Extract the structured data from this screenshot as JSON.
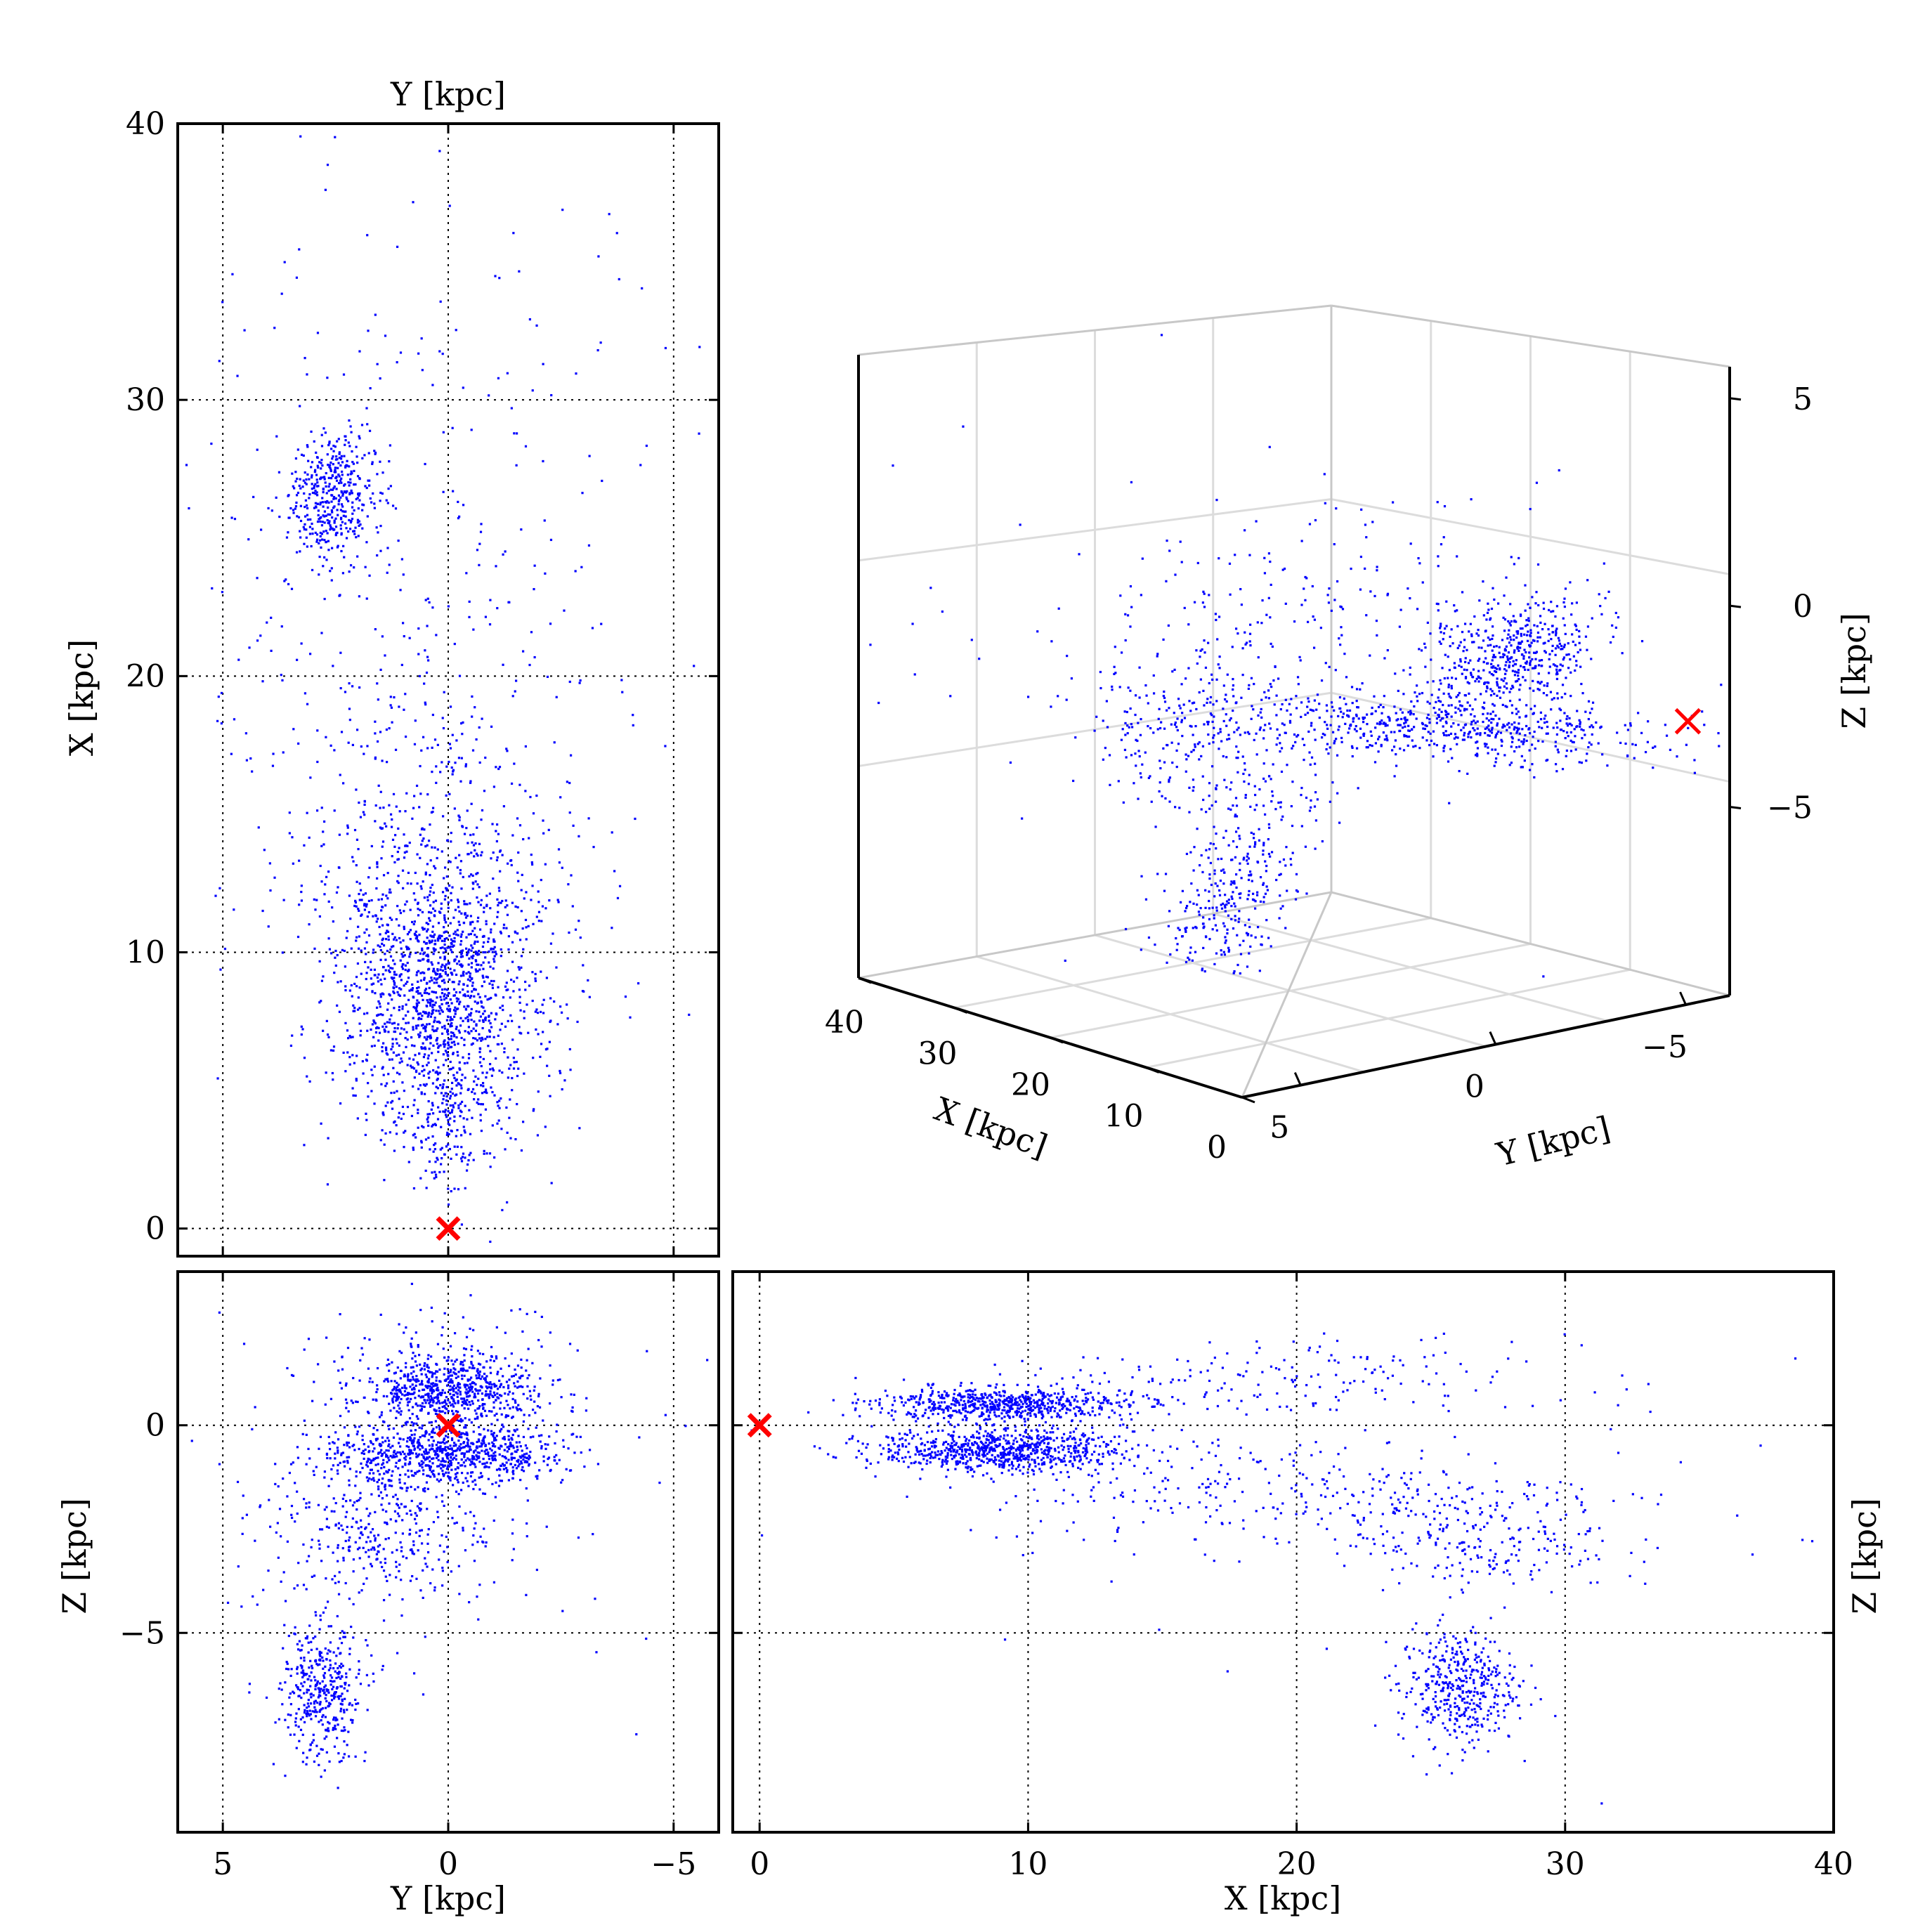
{
  "colors": {
    "points": "#0000ff",
    "marker": "#ff0000",
    "frame": "#000000",
    "grid3d": "#dcdcdc"
  },
  "marker_symbol": "x",
  "chart_data": [
    {
      "id": "panel-xy",
      "type": "scatter",
      "xlabel": "Y [kpc]",
      "ylabel": "X [kpc]",
      "xlim": [
        6,
        -6
      ],
      "ylim": [
        -1,
        40
      ],
      "xticks": [
        5,
        0,
        -5
      ],
      "yticks": [
        0,
        10,
        20,
        30,
        40
      ],
      "xtick_labels": [],
      "ytick_labels": [
        "0",
        "10",
        "20",
        "30",
        "40"
      ],
      "grid": true,
      "clusters": [
        {
          "cx": 0.2,
          "cy": 8,
          "sx": 1.1,
          "sy": 2.5,
          "n": 1400
        },
        {
          "cx": 0.3,
          "cy": 13,
          "sx": 1.7,
          "sy": 3.5,
          "n": 500
        },
        {
          "cx": 2.5,
          "cy": 26.5,
          "sx": 0.5,
          "sy": 1.2,
          "n": 420
        },
        {
          "cx": 1.2,
          "cy": 23,
          "sx": 2.3,
          "sy": 6.5,
          "n": 260
        },
        {
          "cx": 0.0,
          "cy": 3.5,
          "sx": 0.3,
          "sy": 1.1,
          "n": 90
        },
        {
          "cx": 0.5,
          "cy": 28,
          "sx": 3.3,
          "sy": 6,
          "n": 70
        }
      ],
      "marker": {
        "x": 0,
        "y": 0
      }
    },
    {
      "id": "panel-yz",
      "type": "scatter",
      "xlabel": "Y [kpc]",
      "ylabel": "Z [kpc]",
      "xlim": [
        6,
        -6
      ],
      "ylim": [
        -9.8,
        3.7
      ],
      "xticks": [
        5,
        0,
        -5
      ],
      "yticks": [
        0,
        -5
      ],
      "xtick_labels": [
        "5",
        "0",
        "−5"
      ],
      "ytick_labels": [
        "0",
        "−5"
      ],
      "grid": true,
      "clusters": [
        {
          "cx": 0.0,
          "cy": 0.8,
          "sx": 1.0,
          "sy": 0.4,
          "n": 650
        },
        {
          "cx": 0.0,
          "cy": -0.7,
          "sx": 1.3,
          "sy": 0.35,
          "n": 800
        },
        {
          "cx": 1.6,
          "cy": -2.5,
          "sx": 1.4,
          "sy": 0.9,
          "n": 380
        },
        {
          "cx": 2.8,
          "cy": -6.5,
          "sx": 0.45,
          "sy": 0.8,
          "n": 400
        },
        {
          "cx": 0.2,
          "cy": 1.6,
          "sx": 1.5,
          "sy": 0.7,
          "n": 130
        },
        {
          "cx": 0.0,
          "cy": -1.5,
          "sx": 3.5,
          "sy": 2.5,
          "n": 70
        }
      ],
      "marker": {
        "x": 0,
        "y": 0
      }
    },
    {
      "id": "panel-xz",
      "type": "scatter",
      "xlabel": "X [kpc]",
      "ylabel": "Z [kpc]",
      "xlim": [
        -1,
        40
      ],
      "ylim": [
        -9.8,
        3.7
      ],
      "xticks": [
        0,
        10,
        20,
        30,
        40
      ],
      "yticks": [
        0,
        -5
      ],
      "xtick_labels": [
        "0",
        "10",
        "20",
        "30",
        "40"
      ],
      "ytick_labels": [],
      "grid": true,
      "clusters": [
        {
          "cx": 9,
          "cy": 0.5,
          "sx": 2.3,
          "sy": 0.2,
          "n": 650
        },
        {
          "cx": 9,
          "cy": -0.6,
          "sx": 2.3,
          "sy": 0.25,
          "n": 800
        },
        {
          "cx": 18,
          "cy": 1.0,
          "sx": 5,
          "sy": 0.5,
          "n": 180
        },
        {
          "cx": 20,
          "cy": -1.6,
          "sx": 6,
          "sy": 0.7,
          "n": 300
        },
        {
          "cx": 26,
          "cy": -6.3,
          "sx": 1.1,
          "sy": 0.7,
          "n": 420
        },
        {
          "cx": 27,
          "cy": -2.8,
          "sx": 2.5,
          "sy": 0.6,
          "n": 200
        },
        {
          "cx": 25,
          "cy": 0,
          "sx": 10,
          "sy": 3,
          "n": 60
        }
      ],
      "marker": {
        "x": 0,
        "y": 0
      }
    },
    {
      "id": "panel-3d",
      "type": "scatter",
      "xlabel": "X [kpc]",
      "ylabel": "Y [kpc]",
      "zlabel": "Z [kpc]",
      "xtick_labels": [
        "40",
        "30",
        "20",
        "10",
        "0"
      ],
      "ytick_labels": [
        "5",
        "0",
        "−5"
      ],
      "ztick_labels": [
        "5",
        "0",
        "−5"
      ],
      "grid": true,
      "clusters": [
        {
          "cx": 0.75,
          "cy": 0.44,
          "sx": 0.05,
          "sy": 0.035,
          "n": 500,
          "angle": -0.25
        },
        {
          "cx": 0.68,
          "cy": 0.53,
          "sx": 0.12,
          "sy": 0.022,
          "n": 600,
          "angle": 0.05
        },
        {
          "cx": 0.4,
          "cy": 0.54,
          "sx": 0.07,
          "sy": 0.05,
          "n": 280,
          "angle": 0
        },
        {
          "cx": 0.43,
          "cy": 0.73,
          "sx": 0.035,
          "sy": 0.075,
          "n": 350,
          "angle": 0.4
        },
        {
          "cx": 0.5,
          "cy": 0.38,
          "sx": 0.17,
          "sy": 0.06,
          "n": 160,
          "angle": -0.2
        },
        {
          "cx": 0.45,
          "cy": 0.5,
          "sx": 0.25,
          "sy": 0.2,
          "n": 70,
          "angle": 0
        }
      ],
      "marker": {
        "u": 0.952,
        "v": 0.525
      }
    }
  ]
}
